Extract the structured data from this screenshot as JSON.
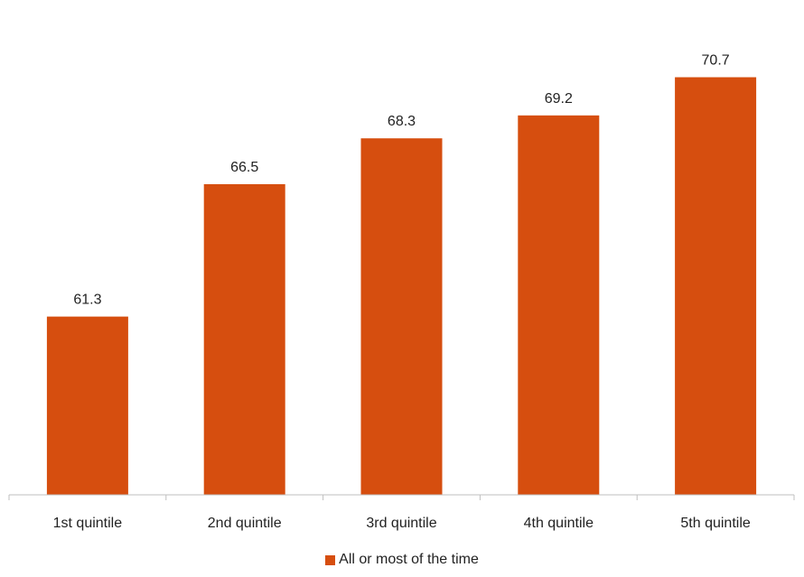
{
  "chart_data": {
    "type": "bar",
    "categories": [
      "1st quintile",
      "2nd quintile",
      "3rd quintile",
      "4th quintile",
      "5th quintile"
    ],
    "series": [
      {
        "name": "All or most of the time",
        "values": [
          61.3,
          66.5,
          68.3,
          69.2,
          70.7
        ],
        "color": "#D64E0F"
      }
    ],
    "grid": false,
    "legend_position": "bottom"
  }
}
